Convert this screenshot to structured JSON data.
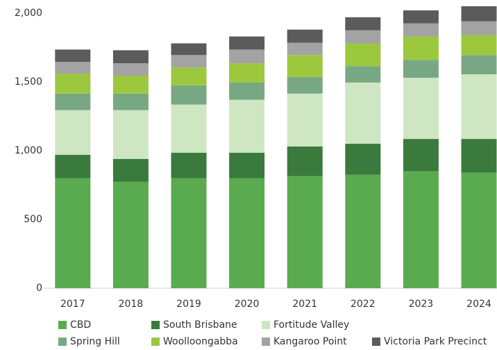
{
  "chart_data": {
    "type": "stacked-bar",
    "categories": [
      "2017",
      "2018",
      "2019",
      "2020",
      "2021",
      "2022",
      "2023",
      "2024"
    ],
    "series": [
      {
        "name": "CBD",
        "color": "#5aab4f",
        "values": [
          800,
          775,
          800,
          800,
          815,
          825,
          850,
          840
        ]
      },
      {
        "name": "South Brisbane",
        "color": "#3a7a3c",
        "values": [
          170,
          165,
          185,
          185,
          215,
          225,
          235,
          245
        ]
      },
      {
        "name": "Fortitude Valley",
        "color": "#cfe6c2",
        "values": [
          325,
          355,
          350,
          385,
          385,
          445,
          445,
          470
        ]
      },
      {
        "name": "Spring Hill",
        "color": "#78a883",
        "values": [
          120,
          120,
          140,
          125,
          120,
          120,
          130,
          140
        ]
      },
      {
        "name": "Woolloongabba",
        "color": "#9cc83e",
        "values": [
          145,
          130,
          130,
          140,
          160,
          165,
          170,
          145
        ]
      },
      {
        "name": "Kangaroo Point",
        "color": "#a3a3a3",
        "values": [
          85,
          90,
          90,
          100,
          90,
          95,
          95,
          100
        ]
      },
      {
        "name": "Victoria Park Precinct",
        "color": "#5b5b5b",
        "values": [
          90,
          95,
          85,
          95,
          95,
          95,
          95,
          110
        ]
      }
    ],
    "ylim": [
      0,
      2070
    ],
    "yticks": [
      0,
      500,
      {
        "value": 1000,
        "label": "1,000"
      },
      {
        "value": 1500,
        "label": "1,500"
      },
      {
        "value": 2000,
        "label": "2,000"
      }
    ],
    "grid": false
  }
}
